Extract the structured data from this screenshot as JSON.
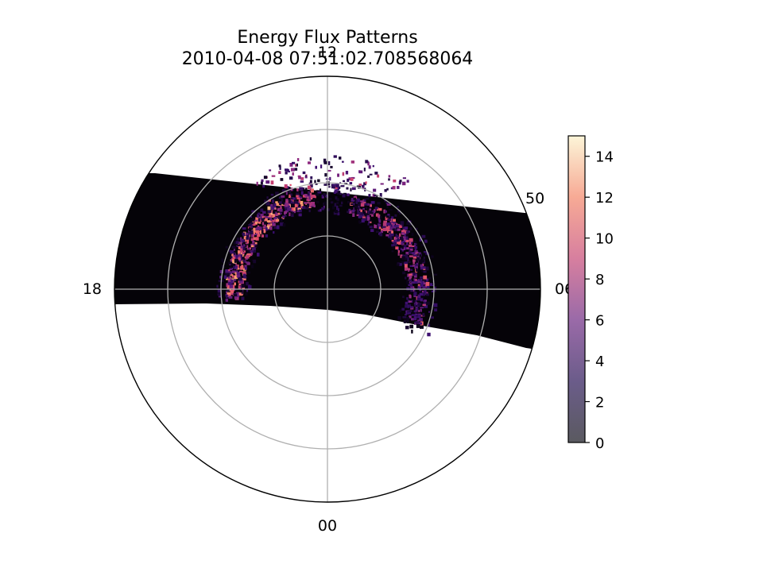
{
  "chart_data": {
    "type": "heatmap",
    "projection": "polar",
    "title": "Energy Flux Patterns",
    "subtitle": "2010-04-08 07:51:02.708568064",
    "theta_tick_labels": {
      "top": "12",
      "left": "18",
      "right": "06",
      "bottom": "00"
    },
    "radial_tick_labels": [
      "50"
    ],
    "grid": true,
    "colormap": "magma",
    "colorbar": {
      "min": 0,
      "max": 15,
      "ticks": [
        0,
        2,
        4,
        6,
        8,
        10,
        12,
        14
      ]
    },
    "background_value": 0,
    "bright_features": [
      {
        "description": "dusk-side arc",
        "approx_value_range": [
          4,
          13
        ]
      },
      {
        "description": "dawn-side arc",
        "approx_value_range": [
          2,
          10
        ]
      }
    ]
  },
  "colors": {
    "swath_background": "#050308",
    "grid": "#b0b0b0",
    "frame": "#000000",
    "magma_stops": [
      "#000004",
      "#3b0f70",
      "#8c2981",
      "#de4968",
      "#fe9f6d",
      "#fcfdbf"
    ]
  }
}
